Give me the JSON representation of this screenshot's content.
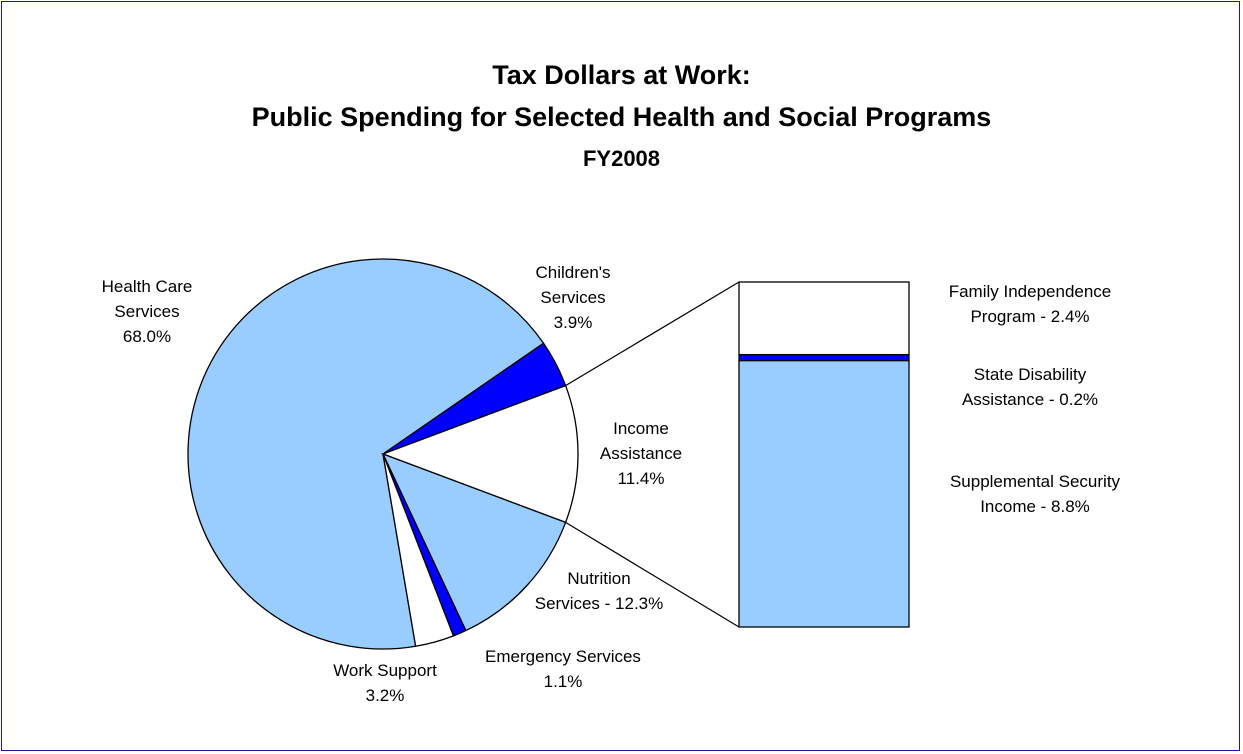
{
  "chart_data": {
    "type": "pie",
    "title": "Tax Dollars at Work:",
    "subtitle": "Public Spending for Selected Health and Social Programs",
    "subtitle2": "FY2008",
    "colors": {
      "light_blue": "#99ccff",
      "blue": "#0000ff",
      "white": "#ffffff",
      "border": "#1a1aa0"
    },
    "slices": [
      {
        "label_lines": [
          "Health Care",
          "Services",
          "68.0%"
        ],
        "value": 68.0,
        "color": "#99ccff"
      },
      {
        "label_lines": [
          "Children's",
          "Services",
          "3.9%"
        ],
        "value": 3.9,
        "color": "#0000ff"
      },
      {
        "label_lines": [
          "Income",
          "Assistance",
          "11.4%"
        ],
        "value": 11.4,
        "color": "#ffffff"
      },
      {
        "label_lines": [
          "Nutrition",
          "Services - 12.3%"
        ],
        "value": 12.3,
        "color": "#99ccff"
      },
      {
        "label_lines": [
          "Emergency Services",
          "1.1%"
        ],
        "value": 1.1,
        "color": "#0000ff"
      },
      {
        "label_lines": [
          "Work Support",
          "3.2%"
        ],
        "value": 3.2,
        "color": "#ffffff"
      }
    ],
    "breakdown": {
      "of": "Income Assistance",
      "segments": [
        {
          "label_lines": [
            "Family Independence",
            "Program - 2.4%"
          ],
          "value": 2.4,
          "color": "#ffffff"
        },
        {
          "label_lines": [
            "State Disability",
            "Assistance - 0.2%"
          ],
          "value": 0.2,
          "color": "#0000ff"
        },
        {
          "label_lines": [
            "Supplemental Security",
            "Income - 8.8%"
          ],
          "value": 8.8,
          "color": "#99ccff"
        }
      ]
    }
  }
}
